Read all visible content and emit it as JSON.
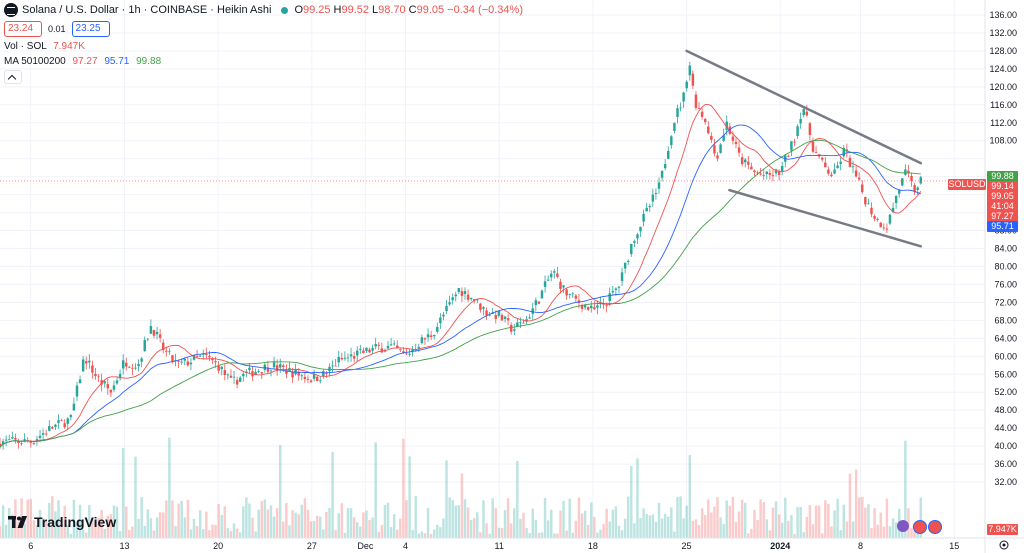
{
  "header": {
    "title": "Solana / U.S. Dollar · 1h · COINBASE · Heikin Ashi",
    "ohlc": [
      {
        "label": "O",
        "value": "99.25"
      },
      {
        "label": "H",
        "value": "99.52"
      },
      {
        "label": "L",
        "value": "98.70"
      },
      {
        "label": "C",
        "value": "99.05"
      }
    ],
    "change": "−0.34 (−0.34%)"
  },
  "quote": {
    "sell": "23.24",
    "spread": "0.01",
    "buy": "23.25"
  },
  "volume_legend": {
    "label": "Vol · SOL",
    "value": "7.947K"
  },
  "ma_legend": {
    "label": "MA 50100200",
    "v1": "97.27",
    "v2": "95.71",
    "v3": "99.88"
  },
  "brand": "TradingView",
  "colors": {
    "up": "#26a69a",
    "down": "#ef5350",
    "ma50": "#ef5350",
    "ma100": "#2962ff",
    "ma200": "#43a047",
    "trendline": "#787b86"
  },
  "price_pills": [
    {
      "text": "99.88",
      "color": "#43a047",
      "price": 99.88
    },
    {
      "text": "99.14",
      "color": "#ef5350",
      "price": 99.14
    },
    {
      "text": "99.05",
      "color": "#ef5350",
      "price": 99.05
    },
    {
      "text": "41:04",
      "color": "#ef5350",
      "price": 99.05
    },
    {
      "text": "97.27",
      "color": "#ef5350",
      "price": 97.27
    },
    {
      "text": "95.71",
      "color": "#2962ff",
      "price": 95.71
    }
  ],
  "symbol_label": "SOLUSD",
  "volume_pill": "7.947K",
  "chart_data": {
    "type": "candlestick",
    "y_ticks": [
      136,
      132,
      128,
      124,
      120,
      116,
      112,
      108,
      104,
      100,
      96,
      92,
      88,
      84,
      80,
      76,
      72,
      68,
      64,
      60,
      56,
      52,
      48,
      44,
      40,
      36,
      32
    ],
    "y_tick_labels": [
      "136.00",
      "132.00",
      "128.00",
      "124.00",
      "120.00",
      "116.00",
      "112.00",
      "108.00",
      "",
      "",
      "",
      "",
      "88.00",
      "84.00",
      "80.00",
      "76.00",
      "72.00",
      "68.00",
      "64.00",
      "60.00",
      "56.00",
      "52.00",
      "48.00",
      "44.00",
      "40.00",
      "36.00",
      "32.00"
    ],
    "ylim": [
      28,
      138
    ],
    "x_ticks": [
      {
        "label": "6",
        "day": 6
      },
      {
        "label": "13",
        "day": 13
      },
      {
        "label": "20",
        "day": 20
      },
      {
        "label": "27",
        "day": 27
      },
      {
        "label": "Dec",
        "day": 31
      },
      {
        "label": "4",
        "day": 34
      },
      {
        "label": "11",
        "day": 41
      },
      {
        "label": "18",
        "day": 48
      },
      {
        "label": "25",
        "day": 55
      },
      {
        "label": "2024",
        "day": 62
      },
      {
        "label": "8",
        "day": 68
      },
      {
        "label": "15",
        "day": 75
      }
    ],
    "xlim": [
      3.7,
      77.3
    ],
    "trend_points": [
      [
        3.7,
        41
      ],
      [
        6,
        41
      ],
      [
        7.5,
        44
      ],
      [
        9,
        46
      ],
      [
        10,
        60
      ],
      [
        11,
        55
      ],
      [
        12,
        52
      ],
      [
        13,
        59
      ],
      [
        14,
        58
      ],
      [
        15,
        67
      ],
      [
        16,
        61
      ],
      [
        17,
        58
      ],
      [
        18,
        59
      ],
      [
        19,
        60
      ],
      [
        20,
        58
      ],
      [
        21,
        54
      ],
      [
        22,
        56
      ],
      [
        23,
        57
      ],
      [
        24,
        58
      ],
      [
        25,
        57
      ],
      [
        26,
        56
      ],
      [
        27,
        55
      ],
      [
        28,
        56
      ],
      [
        29,
        59
      ],
      [
        30,
        60
      ],
      [
        31,
        61
      ],
      [
        32,
        62
      ],
      [
        33,
        62
      ],
      [
        34,
        60
      ],
      [
        35,
        63
      ],
      [
        36,
        65
      ],
      [
        37,
        70
      ],
      [
        38,
        75
      ],
      [
        39,
        73
      ],
      [
        40,
        70
      ],
      [
        41,
        69
      ],
      [
        42,
        66
      ],
      [
        43,
        68
      ],
      [
        44,
        73
      ],
      [
        45,
        79
      ],
      [
        46,
        74
      ],
      [
        47,
        72
      ],
      [
        48,
        70
      ],
      [
        49,
        72
      ],
      [
        50,
        76
      ],
      [
        51,
        86
      ],
      [
        52,
        92
      ],
      [
        53,
        98
      ],
      [
        54,
        112
      ],
      [
        54.8,
        118
      ],
      [
        55.2,
        126
      ],
      [
        55.6,
        117
      ],
      [
        56.5,
        112
      ],
      [
        57.2,
        104
      ],
      [
        58,
        112
      ],
      [
        59,
        104
      ],
      [
        60,
        101
      ],
      [
        61,
        100
      ],
      [
        62,
        101
      ],
      [
        63,
        108
      ],
      [
        63.7,
        116
      ],
      [
        64.5,
        106
      ],
      [
        65.3,
        102
      ],
      [
        66,
        100
      ],
      [
        66.8,
        106
      ],
      [
        67.5,
        101
      ],
      [
        68.5,
        94
      ],
      [
        69.3,
        90
      ],
      [
        70,
        89
      ],
      [
        70.7,
        96
      ],
      [
        71.4,
        101
      ],
      [
        72,
        97
      ],
      [
        72.5,
        99
      ]
    ],
    "trendlines": [
      {
        "from": [
          55,
          128
        ],
        "to": [
          72.5,
          103
        ]
      },
      {
        "from": [
          58.2,
          97
        ],
        "to": [
          72.5,
          84.5
        ]
      }
    ],
    "last_price": 99.05
  }
}
